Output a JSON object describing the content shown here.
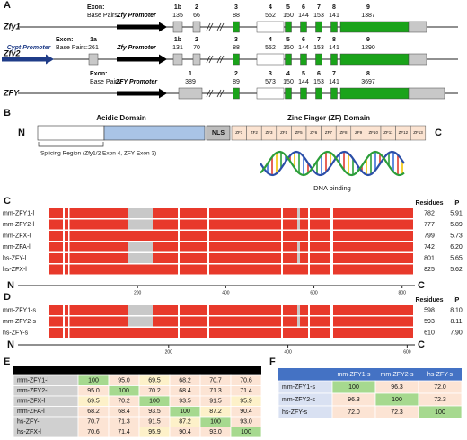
{
  "panel_labels": [
    "A",
    "B",
    "C",
    "D",
    "E",
    "F"
  ],
  "gene_structure": {
    "exon_label": "Exon:",
    "bp_label": "Base Pairs:",
    "genes": [
      {
        "name": "Zfy1",
        "promoters": [
          "Zfy Promoter"
        ],
        "exons": [
          {
            "number": "1b",
            "bp": "135"
          },
          {
            "number": "2",
            "bp": "66"
          },
          {
            "number": "3",
            "bp": "88"
          },
          {
            "number": "4",
            "bp": "552"
          },
          {
            "number": "5",
            "bp": "150"
          },
          {
            "number": "6",
            "bp": "144"
          },
          {
            "number": "7",
            "bp": "153"
          },
          {
            "number": "8",
            "bp": "141"
          },
          {
            "number": "9",
            "bp": "1387"
          }
        ]
      },
      {
        "name": "Zfy2",
        "promoters": [
          "Cypt Promoter",
          "Zfy Promoter"
        ],
        "exons": [
          {
            "number": "1a",
            "bp": "261"
          },
          {
            "number": "1b",
            "bp": "131"
          },
          {
            "number": "2",
            "bp": "70"
          },
          {
            "number": "3",
            "bp": "88"
          },
          {
            "number": "4",
            "bp": "552"
          },
          {
            "number": "5",
            "bp": "150"
          },
          {
            "number": "6",
            "bp": "144"
          },
          {
            "number": "7",
            "bp": "153"
          },
          {
            "number": "8",
            "bp": "141"
          },
          {
            "number": "9",
            "bp": "1290"
          }
        ]
      },
      {
        "name": "ZFY",
        "promoters": [
          "ZFY Promoter"
        ],
        "exons": [
          {
            "number": "1",
            "bp": "389"
          },
          {
            "number": "2",
            "bp": "89"
          },
          {
            "number": "3",
            "bp": "573"
          },
          {
            "number": "4",
            "bp": "150"
          },
          {
            "number": "5",
            "bp": "144"
          },
          {
            "number": "6",
            "bp": "153"
          },
          {
            "number": "7",
            "bp": "141"
          },
          {
            "number": "8",
            "bp": "3697"
          }
        ]
      }
    ]
  },
  "domain": {
    "n_term": "N",
    "c_term": "C",
    "acidic": "Acidic Domain",
    "nls": "NLS",
    "zf_domain": "Zinc Finger (ZF) Domain",
    "zf": [
      "ZF1",
      "ZF2",
      "ZF3",
      "ZF4",
      "ZF5",
      "ZF6",
      "ZF7",
      "ZF8",
      "ZF9",
      "ZF10",
      "ZF11",
      "ZF12",
      "ZF13"
    ],
    "splicing": "Splicing Region (Zfy1/2 Exon 4, ZFY Exon 3)",
    "dna": "DNA binding"
  },
  "alignment_long": {
    "residues_header": "Residues",
    "ip_header": "iP",
    "n_term": "N",
    "c_term": "C",
    "ticks": [
      200,
      400,
      600,
      800
    ],
    "rows": [
      {
        "name": "mm-ZFY1-l",
        "residues": 782,
        "ip": "5.91"
      },
      {
        "name": "mm-ZFY2-l",
        "residues": 777,
        "ip": "5.89"
      },
      {
        "name": "mm-ZFX-l",
        "residues": 799,
        "ip": "5.73"
      },
      {
        "name": "mm-ZFA-l",
        "residues": 742,
        "ip": "6.20"
      },
      {
        "name": "hs-ZFY-l",
        "residues": 801,
        "ip": "5.65"
      },
      {
        "name": "hs-ZFX-l",
        "residues": 825,
        "ip": "5.62"
      }
    ]
  },
  "alignment_short": {
    "residues_header": "Residues",
    "ip_header": "iP",
    "n_term": "N",
    "c_term": "C",
    "ticks": [
      200,
      400,
      600
    ],
    "rows": [
      {
        "name": "mm-ZFY1-s",
        "residues": 598,
        "ip": "8.10"
      },
      {
        "name": "mm-ZFY2-s",
        "residues": 593,
        "ip": "8.11"
      },
      {
        "name": "hs-ZFY-s",
        "residues": 610,
        "ip": "7.90"
      }
    ]
  },
  "table_long": {
    "rows": [
      {
        "label": "mm-ZFY1-l",
        "cells": [
          "100",
          "95.0",
          "69.5",
          "68.2",
          "70.7",
          "70.6"
        ]
      },
      {
        "label": "mm-ZFY2-l",
        "cells": [
          "95.0",
          "100",
          "70.2",
          "68.4",
          "71.3",
          "71.4"
        ]
      },
      {
        "label": "mm-ZFX-l",
        "cells": [
          "69.5",
          "70.2",
          "100",
          "93.5",
          "91.5",
          "95.9"
        ]
      },
      {
        "label": "mm-ZFA-l",
        "cells": [
          "68.2",
          "68.4",
          "93.5",
          "100",
          "87.2",
          "90.4"
        ]
      },
      {
        "label": "hs-ZFY-l",
        "cells": [
          "70.7",
          "71.3",
          "91.5",
          "87.2",
          "100",
          "93.0"
        ]
      },
      {
        "label": "hs-ZFX-l",
        "cells": [
          "70.6",
          "71.4",
          "95.9",
          "90.4",
          "93.0",
          "100"
        ]
      }
    ]
  },
  "table_short": {
    "columns": [
      "mm-ZFY1-s",
      "mm-ZFY2-s",
      "hs-ZFY-s"
    ],
    "rows": [
      {
        "label": "mm-ZFY1-s",
        "cells": [
          "100",
          "96.3",
          "72.0"
        ]
      },
      {
        "label": "mm-ZFY2-s",
        "cells": [
          "96.3",
          "100",
          "72.3"
        ]
      },
      {
        "label": "hs-ZFY-s",
        "cells": [
          "72.0",
          "72.3",
          "100"
        ]
      }
    ]
  }
}
